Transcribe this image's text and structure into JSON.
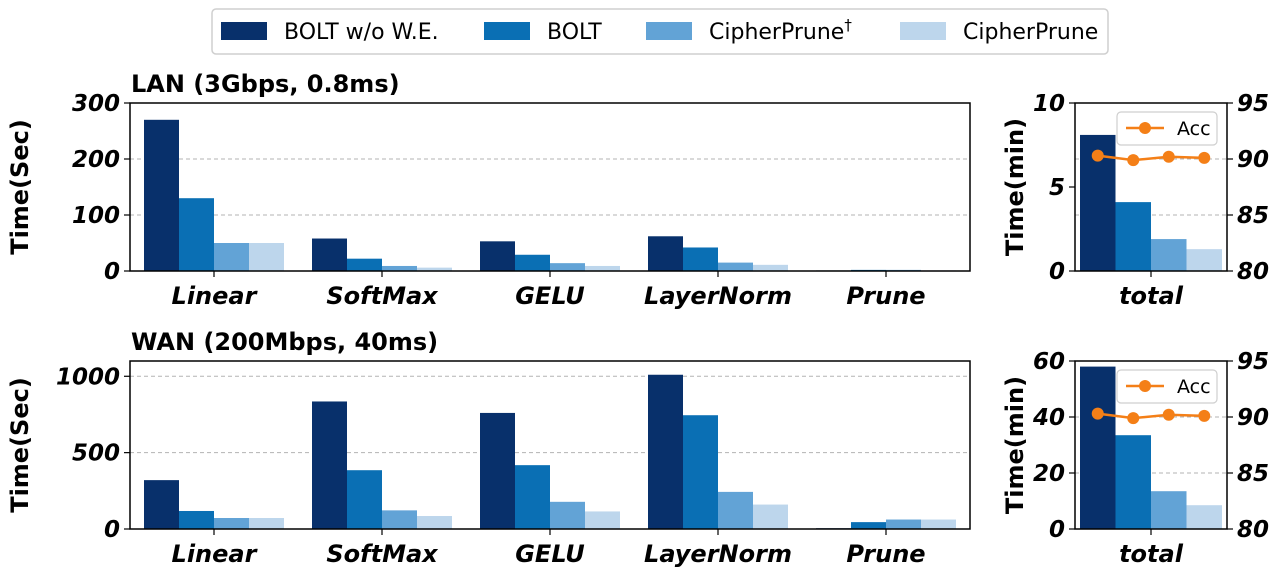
{
  "chart_data": {
    "type": "bar",
    "legend": {
      "placement": "top-center",
      "entries": [
        {
          "name": "BOLT w/o W.E.",
          "color": "#08306b"
        },
        {
          "name": "BOLT",
          "color": "#0a6fb4"
        },
        {
          "name": "CipherPrune",
          "sup": "†",
          "color": "#62a3d6"
        },
        {
          "name": "CipherPrune",
          "color": "#bdd6ec"
        }
      ]
    },
    "panels": [
      {
        "id": "lan",
        "title": "LAN (3Gbps, 0.8ms)",
        "ylabel": "Time(Sec)",
        "ylim": [
          0,
          300
        ],
        "yticks": [
          "0",
          "100",
          "200",
          "300"
        ],
        "grid": true,
        "categories": [
          "Linear",
          "SoftMax",
          "GELU",
          "LayerNorm",
          "Prune"
        ],
        "series": [
          {
            "name": "BOLT w/o W.E.",
            "values": [
              270,
              58,
              53,
              62,
              1
            ]
          },
          {
            "name": "BOLT",
            "values": [
              130,
              22,
              29,
              42,
              2
            ]
          },
          {
            "name": "CipherPrune†",
            "values": [
              50,
              9,
              14,
              15,
              2
            ]
          },
          {
            "name": "CipherPrune",
            "values": [
              50,
              6,
              9,
              11,
              1
            ]
          }
        ]
      },
      {
        "id": "wan",
        "title": "WAN (200Mbps, 40ms)",
        "ylabel": "Time(Sec)",
        "ylim": [
          0,
          1100
        ],
        "yticks": [
          "0",
          "500",
          "1000"
        ],
        "grid": true,
        "categories": [
          "Linear",
          "SoftMax",
          "GELU",
          "LayerNorm",
          "Prune"
        ],
        "series": [
          {
            "name": "BOLT w/o W.E.",
            "values": [
              320,
              835,
              760,
              1010,
              5
            ]
          },
          {
            "name": "BOLT",
            "values": [
              118,
              385,
              418,
              745,
              45
            ]
          },
          {
            "name": "CipherPrune†",
            "values": [
              72,
              122,
              178,
              243,
              62
            ]
          },
          {
            "name": "CipherPrune",
            "values": [
              72,
              85,
              115,
              160,
              62
            ]
          }
        ]
      }
    ],
    "total_panels": [
      {
        "id": "lan-total",
        "ylabel": "Time(min)",
        "ylim": [
          0,
          10
        ],
        "yticks": [
          "0",
          "5",
          "10"
        ],
        "y2lim": [
          80,
          95
        ],
        "y2ticks": [
          "80",
          "85",
          "90",
          "95"
        ],
        "category": "total",
        "values": [
          8.1,
          4.1,
          1.9,
          1.3
        ],
        "acc": {
          "name": "Acc",
          "color": "#f47f17",
          "values": [
            90.3,
            89.9,
            90.2,
            90.1
          ],
          "legend_placement": "upper-right"
        }
      },
      {
        "id": "wan-total",
        "ylabel": "Time(min)",
        "ylim": [
          0,
          60
        ],
        "yticks": [
          "0",
          "20",
          "40",
          "60"
        ],
        "y2lim": [
          80,
          95
        ],
        "y2ticks": [
          "80",
          "85",
          "90",
          "95"
        ],
        "category": "total",
        "values": [
          58,
          33.5,
          13.5,
          8.5
        ],
        "acc": {
          "name": "Acc",
          "color": "#f47f17",
          "values": [
            90.3,
            89.9,
            90.2,
            90.1
          ],
          "legend_placement": "upper-right"
        }
      }
    ]
  }
}
